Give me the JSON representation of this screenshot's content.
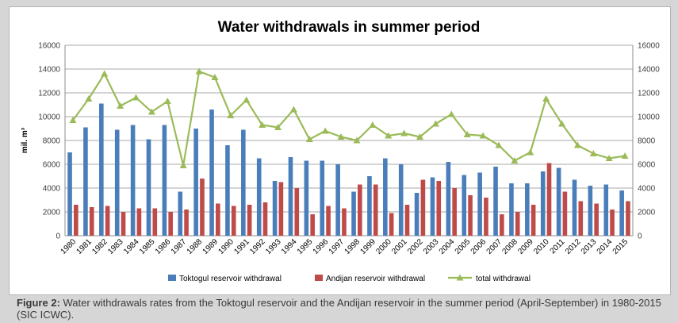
{
  "caption": {
    "label": "Figure 2:",
    "text": " Water withdrawals rates from the Toktogul reservoir and the Andijan reservoir in the summer period (April-September) in 1980-2015 (SIC ICWC)."
  },
  "chart_data": {
    "type": "bar",
    "title": "Water withdrawals in summer period",
    "ylabel": "mil. m³",
    "xlabel": "",
    "ylim": [
      0,
      16000
    ],
    "yticks": [
      0,
      2000,
      4000,
      6000,
      8000,
      10000,
      12000,
      14000,
      16000
    ],
    "secondary_ylim": [
      0,
      16000
    ],
    "grid": true,
    "legend_position": "bottom",
    "categories": [
      "1980",
      "1981",
      "1982",
      "1983",
      "1984",
      "1985",
      "1986",
      "1987",
      "1988",
      "1989",
      "1990",
      "1991",
      "1992",
      "1993",
      "1994",
      "1995",
      "1996",
      "1997",
      "1998",
      "1999",
      "2000",
      "2001",
      "2002",
      "2003",
      "2004",
      "2005",
      "2006",
      "2007",
      "2008",
      "2009",
      "2010",
      "2011",
      "2012",
      "2013",
      "2014",
      "2015"
    ],
    "series": [
      {
        "name": "Toktogul reservoir withdrawal",
        "type": "bar",
        "color": "#4a7ebb",
        "values": [
          7000,
          9100,
          11100,
          8900,
          9300,
          8100,
          9300,
          3700,
          9000,
          10600,
          7600,
          8900,
          6500,
          4600,
          6600,
          6300,
          6300,
          6000,
          3700,
          5000,
          6500,
          6000,
          3600,
          4900,
          6200,
          5100,
          5300,
          5800,
          4400,
          4400,
          5400,
          5700,
          4700,
          4200,
          4300,
          3800
        ]
      },
      {
        "name": "Andijan reservoir withdrawal",
        "type": "bar",
        "color": "#be4b48",
        "values": [
          2600,
          2400,
          2500,
          2000,
          2300,
          2300,
          2000,
          2200,
          4800,
          2700,
          2500,
          2600,
          2800,
          4500,
          4000,
          1800,
          2500,
          2300,
          4300,
          4300,
          1900,
          2600,
          4700,
          4600,
          4000,
          3400,
          3200,
          1800,
          2000,
          2600,
          6100,
          3700,
          2900,
          2700,
          2200,
          2900
        ]
      },
      {
        "name": "total withdrawal",
        "type": "line",
        "color": "#9bbb59",
        "values": [
          9700,
          11500,
          13600,
          10900,
          11600,
          10400,
          11300,
          5900,
          13800,
          13300,
          10100,
          11400,
          9300,
          9100,
          10600,
          8100,
          8800,
          8300,
          8000,
          9300,
          8400,
          8600,
          8300,
          9400,
          10200,
          8500,
          8400,
          7600,
          6300,
          7000,
          11500,
          9400,
          7600,
          6900,
          6500,
          6700
        ]
      }
    ]
  }
}
